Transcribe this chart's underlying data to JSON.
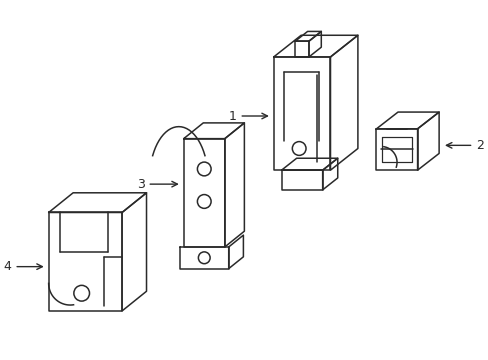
{
  "bg_color": "#ffffff",
  "line_color": "#2a2a2a",
  "line_width": 1.1,
  "label_fontsize": 9,
  "fig_width": 4.89,
  "fig_height": 3.6,
  "dpi": 100
}
